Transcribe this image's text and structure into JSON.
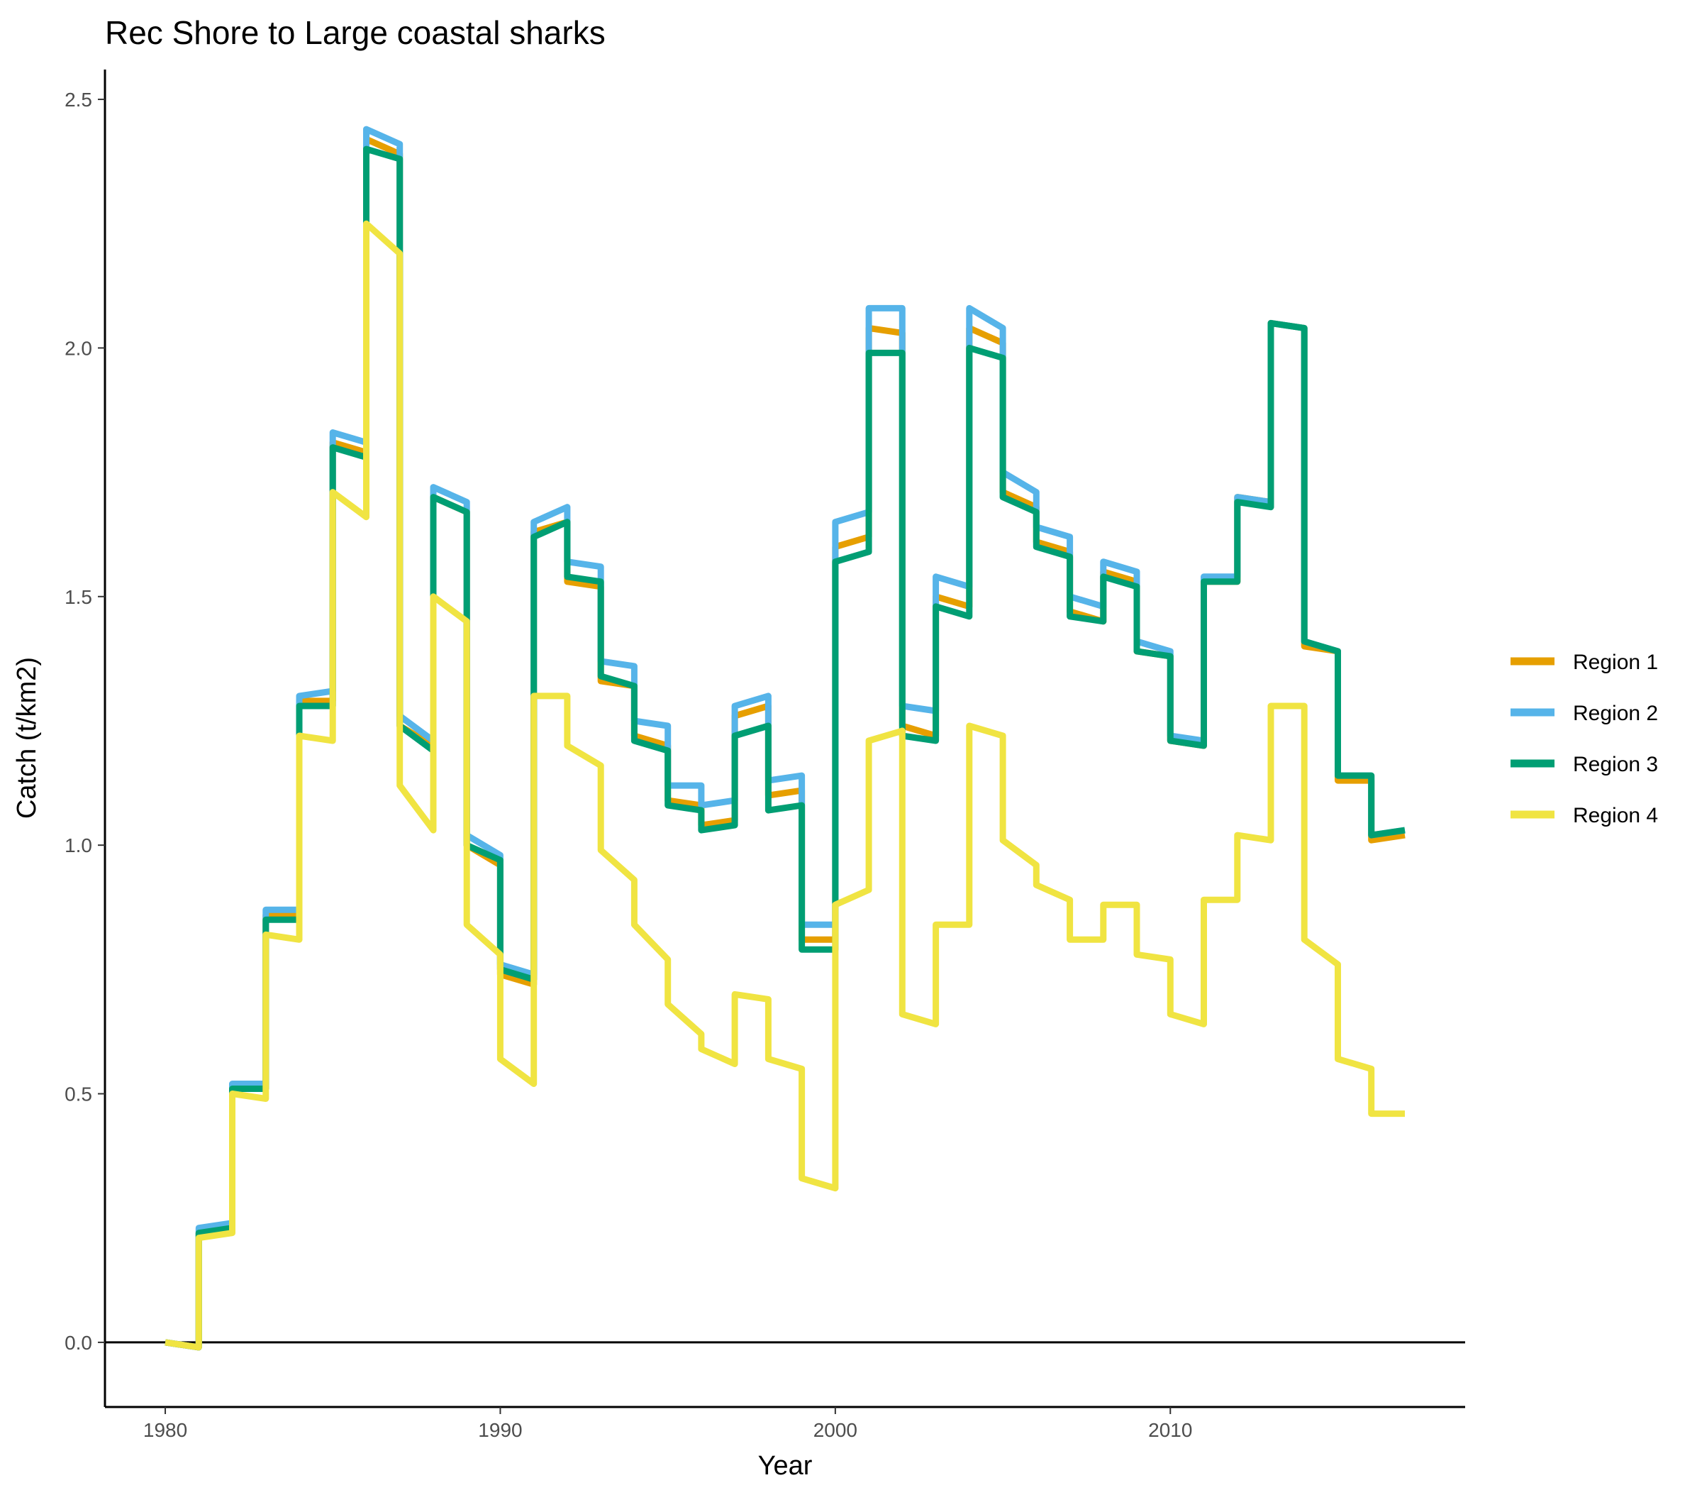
{
  "chart_data": {
    "type": "line",
    "title": "Rec Shore to Large coastal sharks",
    "xlabel": "Year",
    "ylabel": "Catch (t/km2)",
    "xlim": [
      1978.2,
      2018.8
    ],
    "ylim": [
      -0.13,
      2.56
    ],
    "x_ticks": [
      1980,
      1990,
      2000,
      2010
    ],
    "y_ticks": [
      0.0,
      0.5,
      1.0,
      1.5,
      2.0,
      2.5
    ],
    "y_tick_labels": [
      "0.0",
      "0.5",
      "1.0",
      "1.5",
      "2.0",
      "2.5"
    ],
    "hline": 0,
    "legend_position": "right",
    "series": [
      {
        "name": "Region 1",
        "color": "#E69F00",
        "x": [
          1980,
          1981,
          1981,
          1982,
          1982,
          1983,
          1983,
          1984,
          1984,
          1985,
          1985,
          1986,
          1986,
          1987,
          1987,
          1988,
          1988,
          1989,
          1989,
          1990,
          1990,
          1991,
          1991,
          1992,
          1992,
          1993,
          1993,
          1994,
          1994,
          1995,
          1995,
          1996,
          1996,
          1997,
          1997,
          1998,
          1998,
          1999,
          1999,
          2000,
          2000,
          2001,
          2001,
          2002,
          2002,
          2003,
          2003,
          2004,
          2004,
          2005,
          2005,
          2006,
          2006,
          2007,
          2007,
          2008,
          2008,
          2009,
          2009,
          2010,
          2010,
          2011,
          2011,
          2012,
          2012,
          2013,
          2013,
          2014,
          2014,
          2015,
          2015,
          2016,
          2016,
          2017
        ],
        "y": [
          0.0,
          -0.01,
          0.22,
          0.23,
          0.51,
          0.51,
          0.86,
          0.86,
          1.29,
          1.29,
          1.81,
          1.79,
          2.42,
          2.39,
          1.24,
          1.2,
          1.7,
          1.67,
          1.0,
          0.96,
          0.74,
          0.72,
          1.63,
          1.65,
          1.53,
          1.52,
          1.33,
          1.32,
          1.22,
          1.2,
          1.09,
          1.08,
          1.04,
          1.05,
          1.26,
          1.28,
          1.1,
          1.11,
          0.81,
          0.81,
          1.6,
          1.62,
          2.04,
          2.03,
          1.24,
          1.22,
          1.5,
          1.48,
          2.04,
          2.01,
          1.71,
          1.68,
          1.61,
          1.59,
          1.47,
          1.45,
          1.55,
          1.53,
          1.39,
          1.38,
          1.21,
          1.2,
          1.53,
          1.53,
          1.7,
          1.69,
          2.05,
          2.04,
          1.4,
          1.39,
          1.13,
          1.13,
          1.01,
          1.02
        ]
      },
      {
        "name": "Region 2",
        "color": "#56B4E9",
        "x": [
          1980,
          1981,
          1981,
          1982,
          1982,
          1983,
          1983,
          1984,
          1984,
          1985,
          1985,
          1986,
          1986,
          1987,
          1987,
          1988,
          1988,
          1989,
          1989,
          1990,
          1990,
          1991,
          1991,
          1992,
          1992,
          1993,
          1993,
          1994,
          1994,
          1995,
          1995,
          1996,
          1996,
          1997,
          1997,
          1998,
          1998,
          1999,
          1999,
          2000,
          2000,
          2001,
          2001,
          2002,
          2002,
          2003,
          2003,
          2004,
          2004,
          2005,
          2005,
          2006,
          2006,
          2007,
          2007,
          2008,
          2008,
          2009,
          2009,
          2010,
          2010,
          2011,
          2011,
          2012,
          2012,
          2013,
          2013,
          2014,
          2014,
          2015,
          2015,
          2016,
          2016,
          2017
        ],
        "y": [
          0.0,
          -0.01,
          0.23,
          0.24,
          0.52,
          0.52,
          0.87,
          0.87,
          1.3,
          1.31,
          1.83,
          1.81,
          2.44,
          2.41,
          1.26,
          1.21,
          1.72,
          1.69,
          1.02,
          0.98,
          0.76,
          0.74,
          1.65,
          1.68,
          1.57,
          1.56,
          1.37,
          1.36,
          1.25,
          1.24,
          1.12,
          1.12,
          1.08,
          1.09,
          1.28,
          1.3,
          1.13,
          1.14,
          0.84,
          0.84,
          1.65,
          1.67,
          2.08,
          2.08,
          1.28,
          1.27,
          1.54,
          1.52,
          2.08,
          2.04,
          1.75,
          1.71,
          1.64,
          1.62,
          1.5,
          1.48,
          1.57,
          1.55,
          1.41,
          1.39,
          1.22,
          1.21,
          1.54,
          1.54,
          1.7,
          1.69,
          2.05,
          2.04,
          1.41,
          1.39,
          1.14,
          1.14,
          1.02,
          1.03
        ]
      },
      {
        "name": "Region 3",
        "color": "#009E73",
        "x": [
          1980,
          1981,
          1981,
          1982,
          1982,
          1983,
          1983,
          1984,
          1984,
          1985,
          1985,
          1986,
          1986,
          1987,
          1987,
          1988,
          1988,
          1989,
          1989,
          1990,
          1990,
          1991,
          1991,
          1992,
          1992,
          1993,
          1993,
          1994,
          1994,
          1995,
          1995,
          1996,
          1996,
          1997,
          1997,
          1998,
          1998,
          1999,
          1999,
          2000,
          2000,
          2001,
          2001,
          2002,
          2002,
          2003,
          2003,
          2004,
          2004,
          2005,
          2005,
          2006,
          2006,
          2007,
          2007,
          2008,
          2008,
          2009,
          2009,
          2010,
          2010,
          2011,
          2011,
          2012,
          2012,
          2013,
          2013,
          2014,
          2014,
          2015,
          2015,
          2016,
          2016,
          2017
        ],
        "y": [
          0.0,
          -0.01,
          0.22,
          0.23,
          0.51,
          0.51,
          0.85,
          0.85,
          1.28,
          1.28,
          1.8,
          1.78,
          2.4,
          2.38,
          1.24,
          1.19,
          1.7,
          1.67,
          1.0,
          0.97,
          0.75,
          0.73,
          1.62,
          1.65,
          1.54,
          1.53,
          1.34,
          1.32,
          1.21,
          1.19,
          1.08,
          1.07,
          1.03,
          1.04,
          1.22,
          1.24,
          1.07,
          1.08,
          0.79,
          0.79,
          1.57,
          1.59,
          1.99,
          1.99,
          1.22,
          1.21,
          1.48,
          1.46,
          2.0,
          1.98,
          1.7,
          1.67,
          1.6,
          1.58,
          1.46,
          1.45,
          1.54,
          1.52,
          1.39,
          1.38,
          1.21,
          1.2,
          1.53,
          1.53,
          1.69,
          1.68,
          2.05,
          2.04,
          1.41,
          1.39,
          1.14,
          1.14,
          1.02,
          1.03
        ]
      },
      {
        "name": "Region 4",
        "color": "#F0E442",
        "x": [
          1980,
          1981,
          1981,
          1982,
          1982,
          1983,
          1983,
          1984,
          1984,
          1985,
          1985,
          1986,
          1986,
          1987,
          1987,
          1988,
          1988,
          1989,
          1989,
          1990,
          1990,
          1991,
          1991,
          1992,
          1992,
          1993,
          1993,
          1994,
          1994,
          1995,
          1995,
          1996,
          1996,
          1997,
          1997,
          1998,
          1998,
          1999,
          1999,
          2000,
          2000,
          2001,
          2001,
          2002,
          2002,
          2003,
          2003,
          2004,
          2004,
          2005,
          2005,
          2006,
          2006,
          2007,
          2007,
          2008,
          2008,
          2009,
          2009,
          2010,
          2010,
          2011,
          2011,
          2012,
          2012,
          2013,
          2013,
          2014,
          2014,
          2015,
          2015,
          2016,
          2016,
          2017
        ],
        "y": [
          0.0,
          -0.01,
          0.21,
          0.22,
          0.5,
          0.49,
          0.82,
          0.81,
          1.22,
          1.21,
          1.71,
          1.66,
          2.25,
          2.19,
          1.12,
          1.03,
          1.5,
          1.45,
          0.84,
          0.78,
          0.57,
          0.52,
          1.3,
          1.3,
          1.2,
          1.16,
          0.99,
          0.93,
          0.84,
          0.77,
          0.68,
          0.62,
          0.59,
          0.56,
          0.7,
          0.69,
          0.57,
          0.55,
          0.33,
          0.31,
          0.88,
          0.91,
          1.21,
          1.23,
          0.66,
          0.64,
          0.84,
          0.84,
          1.24,
          1.22,
          1.01,
          0.96,
          0.92,
          0.89,
          0.81,
          0.81,
          0.88,
          0.88,
          0.78,
          0.77,
          0.66,
          0.64,
          0.89,
          0.89,
          1.02,
          1.01,
          1.28,
          1.28,
          0.81,
          0.76,
          0.57,
          0.55,
          0.46,
          0.46
        ]
      }
    ]
  }
}
